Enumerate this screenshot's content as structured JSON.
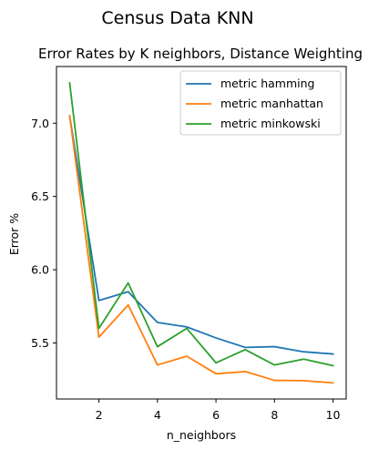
{
  "chart_data": {
    "type": "line",
    "suptitle": "Census Data KNN",
    "title": "Error Rates by K neighbors, Distance Weighting",
    "xlabel": "n_neighbors",
    "ylabel": "Error %",
    "x": [
      1,
      2,
      3,
      4,
      5,
      6,
      7,
      8,
      9,
      10
    ],
    "xlim": [
      0.55,
      10.45
    ],
    "ylim": [
      5.118,
      7.387
    ],
    "xticks": [
      2,
      4,
      6,
      8,
      10
    ],
    "yticks": [
      5.5,
      6.0,
      6.5,
      7.0
    ],
    "ytick_labels": [
      "5.5",
      "6.0",
      "6.5",
      "7.0"
    ],
    "grid": false,
    "legend_position": "top-right",
    "series": [
      {
        "name": "metric hamming",
        "color": "#1f77b4",
        "values": [
          7.05,
          5.79,
          5.85,
          5.64,
          5.61,
          5.535,
          5.47,
          5.475,
          5.44,
          5.425
        ]
      },
      {
        "name": "metric manhattan",
        "color": "#ff7f0e",
        "values": [
          7.05,
          5.54,
          5.76,
          5.35,
          5.41,
          5.29,
          5.305,
          5.245,
          5.243,
          5.228
        ]
      },
      {
        "name": "metric minkowski",
        "color": "#2ca02c",
        "values": [
          7.275,
          5.6,
          5.91,
          5.475,
          5.6,
          5.365,
          5.455,
          5.35,
          5.39,
          5.345
        ]
      }
    ]
  }
}
